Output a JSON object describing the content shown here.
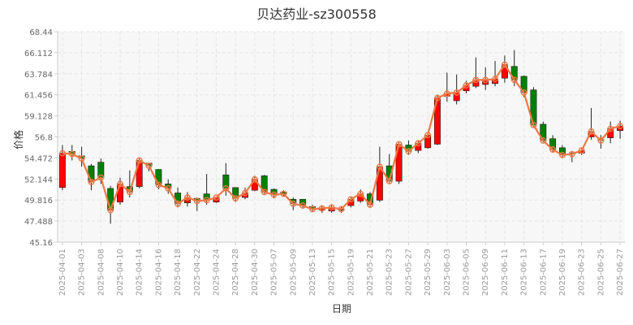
{
  "chart_data": {
    "type": "candlestick",
    "title": "贝达药业-sz300558",
    "xlabel": "日期",
    "ylabel": "价格",
    "ylim": [
      45.16,
      68.44
    ],
    "y_ticks": [
      "68.44",
      "66.112",
      "63.784",
      "61.456",
      "59.128",
      "56.8",
      "54.472",
      "52.144",
      "49.816",
      "47.488",
      "45.16"
    ],
    "x_tick_labels": [
      "2025-04-01",
      "2025-04-03",
      "2025-04-08",
      "2025-04-10",
      "2025-04-14",
      "2025-04-16",
      "2025-04-18",
      "2025-04-22",
      "2025-04-24",
      "2025-04-28",
      "2025-04-30",
      "2025-05-07",
      "2025-05-09",
      "2025-05-13",
      "2025-05-15",
      "2025-05-19",
      "2025-05-21",
      "2025-05-23",
      "2025-05-27",
      "2025-05-29",
      "2025-06-03",
      "2025-06-05",
      "2025-06-09",
      "2025-06-11",
      "2025-06-13",
      "2025-06-17",
      "2025-06-19",
      "2025-06-23",
      "2025-06-25",
      "2025-06-27"
    ],
    "grid": true,
    "colors": {
      "up": "#ff0000",
      "down": "#008000",
      "line": "#f07845",
      "axis": "#cccccc",
      "grid": "#e6e6e6"
    },
    "candles": [
      {
        "o": 51.2,
        "c": 55.0,
        "h": 55.9,
        "l": 50.9
      },
      {
        "o": 55.2,
        "c": 54.9,
        "h": 55.9,
        "l": 54.2
      },
      {
        "o": 54.7,
        "c": 54.4,
        "h": 55.7,
        "l": 53.5
      },
      {
        "o": 53.6,
        "c": 51.8,
        "h": 53.8,
        "l": 50.9
      },
      {
        "o": 54.0,
        "c": 52.3,
        "h": 54.4,
        "l": 51.6
      },
      {
        "o": 51.1,
        "c": 48.7,
        "h": 51.4,
        "l": 47.2
      },
      {
        "o": 49.6,
        "c": 51.6,
        "h": 52.3,
        "l": 49.3
      },
      {
        "o": 51.3,
        "c": 50.7,
        "h": 53.1,
        "l": 50.1
      },
      {
        "o": 51.3,
        "c": 54.2,
        "h": 54.5,
        "l": 51.1
      },
      {
        "o": 53.9,
        "c": 53.6,
        "h": 53.9,
        "l": 53.0
      },
      {
        "o": 53.2,
        "c": 51.5,
        "h": 53.2,
        "l": 51.0
      },
      {
        "o": 51.6,
        "c": 51.1,
        "h": 52.1,
        "l": 50.5
      },
      {
        "o": 50.6,
        "c": 49.4,
        "h": 51.2,
        "l": 49.0
      },
      {
        "o": 49.5,
        "c": 50.1,
        "h": 50.7,
        "l": 49.1
      },
      {
        "o": 50.0,
        "c": 49.7,
        "h": 50.1,
        "l": 48.6
      },
      {
        "o": 50.5,
        "c": 49.8,
        "h": 52.7,
        "l": 49.3
      },
      {
        "o": 49.6,
        "c": 50.1,
        "h": 50.2,
        "l": 49.5
      },
      {
        "o": 52.6,
        "c": 51.1,
        "h": 53.9,
        "l": 50.3
      },
      {
        "o": 51.2,
        "c": 50.0,
        "h": 51.2,
        "l": 49.6
      },
      {
        "o": 50.1,
        "c": 50.6,
        "h": 51.2,
        "l": 49.9
      },
      {
        "o": 50.9,
        "c": 52.1,
        "h": 52.5,
        "l": 50.8
      },
      {
        "o": 52.5,
        "c": 50.7,
        "h": 52.6,
        "l": 50.5
      },
      {
        "o": 51.0,
        "c": 50.4,
        "h": 51.1,
        "l": 50.0
      },
      {
        "o": 50.7,
        "c": 50.5,
        "h": 50.9,
        "l": 50.2
      },
      {
        "o": 49.9,
        "c": 49.4,
        "h": 50.1,
        "l": 48.7
      },
      {
        "o": 49.9,
        "c": 49.2,
        "h": 49.9,
        "l": 48.9
      },
      {
        "o": 49.1,
        "c": 48.8,
        "h": 49.3,
        "l": 48.5
      },
      {
        "o": 48.7,
        "c": 48.9,
        "h": 49.2,
        "l": 48.4
      },
      {
        "o": 48.6,
        "c": 49.0,
        "h": 49.3,
        "l": 48.4
      },
      {
        "o": 48.7,
        "c": 48.8,
        "h": 49.1,
        "l": 48.4
      },
      {
        "o": 49.2,
        "c": 49.9,
        "h": 50.1,
        "l": 49.0
      },
      {
        "o": 49.7,
        "c": 50.5,
        "h": 51.0,
        "l": 49.5
      },
      {
        "o": 50.5,
        "c": 49.3,
        "h": 50.7,
        "l": 49.0
      },
      {
        "o": 49.8,
        "c": 53.5,
        "h": 55.7,
        "l": 49.6
      },
      {
        "o": 53.6,
        "c": 51.9,
        "h": 54.9,
        "l": 51.7
      },
      {
        "o": 51.9,
        "c": 56.0,
        "h": 56.2,
        "l": 51.6
      },
      {
        "o": 55.9,
        "c": 55.2,
        "h": 56.4,
        "l": 54.8
      },
      {
        "o": 55.3,
        "c": 56.1,
        "h": 56.4,
        "l": 55.0
      },
      {
        "o": 55.6,
        "c": 57.0,
        "h": 57.2,
        "l": 55.5
      },
      {
        "o": 56.0,
        "c": 61.1,
        "h": 61.5,
        "l": 55.9
      },
      {
        "o": 61.3,
        "c": 61.6,
        "h": 63.9,
        "l": 60.7
      },
      {
        "o": 60.8,
        "c": 61.7,
        "h": 63.7,
        "l": 60.4
      },
      {
        "o": 61.9,
        "c": 62.5,
        "h": 63.0,
        "l": 61.6
      },
      {
        "o": 62.4,
        "c": 63.1,
        "h": 65.6,
        "l": 62.2
      },
      {
        "o": 62.6,
        "c": 63.1,
        "h": 64.5,
        "l": 62.0
      },
      {
        "o": 62.7,
        "c": 63.2,
        "h": 65.2,
        "l": 62.4
      },
      {
        "o": 63.3,
        "c": 64.8,
        "h": 65.8,
        "l": 62.8
      },
      {
        "o": 64.6,
        "c": 63.1,
        "h": 66.4,
        "l": 62.4
      },
      {
        "o": 63.5,
        "c": 61.7,
        "h": 63.6,
        "l": 61.2
      },
      {
        "o": 62.0,
        "c": 58.1,
        "h": 62.3,
        "l": 57.9
      },
      {
        "o": 58.2,
        "c": 56.4,
        "h": 58.5,
        "l": 56.2
      },
      {
        "o": 56.6,
        "c": 55.4,
        "h": 57.0,
        "l": 55.1
      },
      {
        "o": 55.6,
        "c": 54.8,
        "h": 55.9,
        "l": 54.5
      },
      {
        "o": 55.0,
        "c": 54.9,
        "h": 55.2,
        "l": 54.0
      },
      {
        "o": 55.0,
        "c": 55.3,
        "h": 55.6,
        "l": 54.8
      },
      {
        "o": 56.8,
        "c": 57.4,
        "h": 60.0,
        "l": 56.5
      },
      {
        "o": 56.5,
        "c": 56.4,
        "h": 57.0,
        "l": 55.5
      },
      {
        "o": 56.7,
        "c": 57.7,
        "h": 58.5,
        "l": 56.1
      },
      {
        "o": 57.5,
        "c": 58.0,
        "h": 58.6,
        "l": 56.6
      }
    ]
  }
}
